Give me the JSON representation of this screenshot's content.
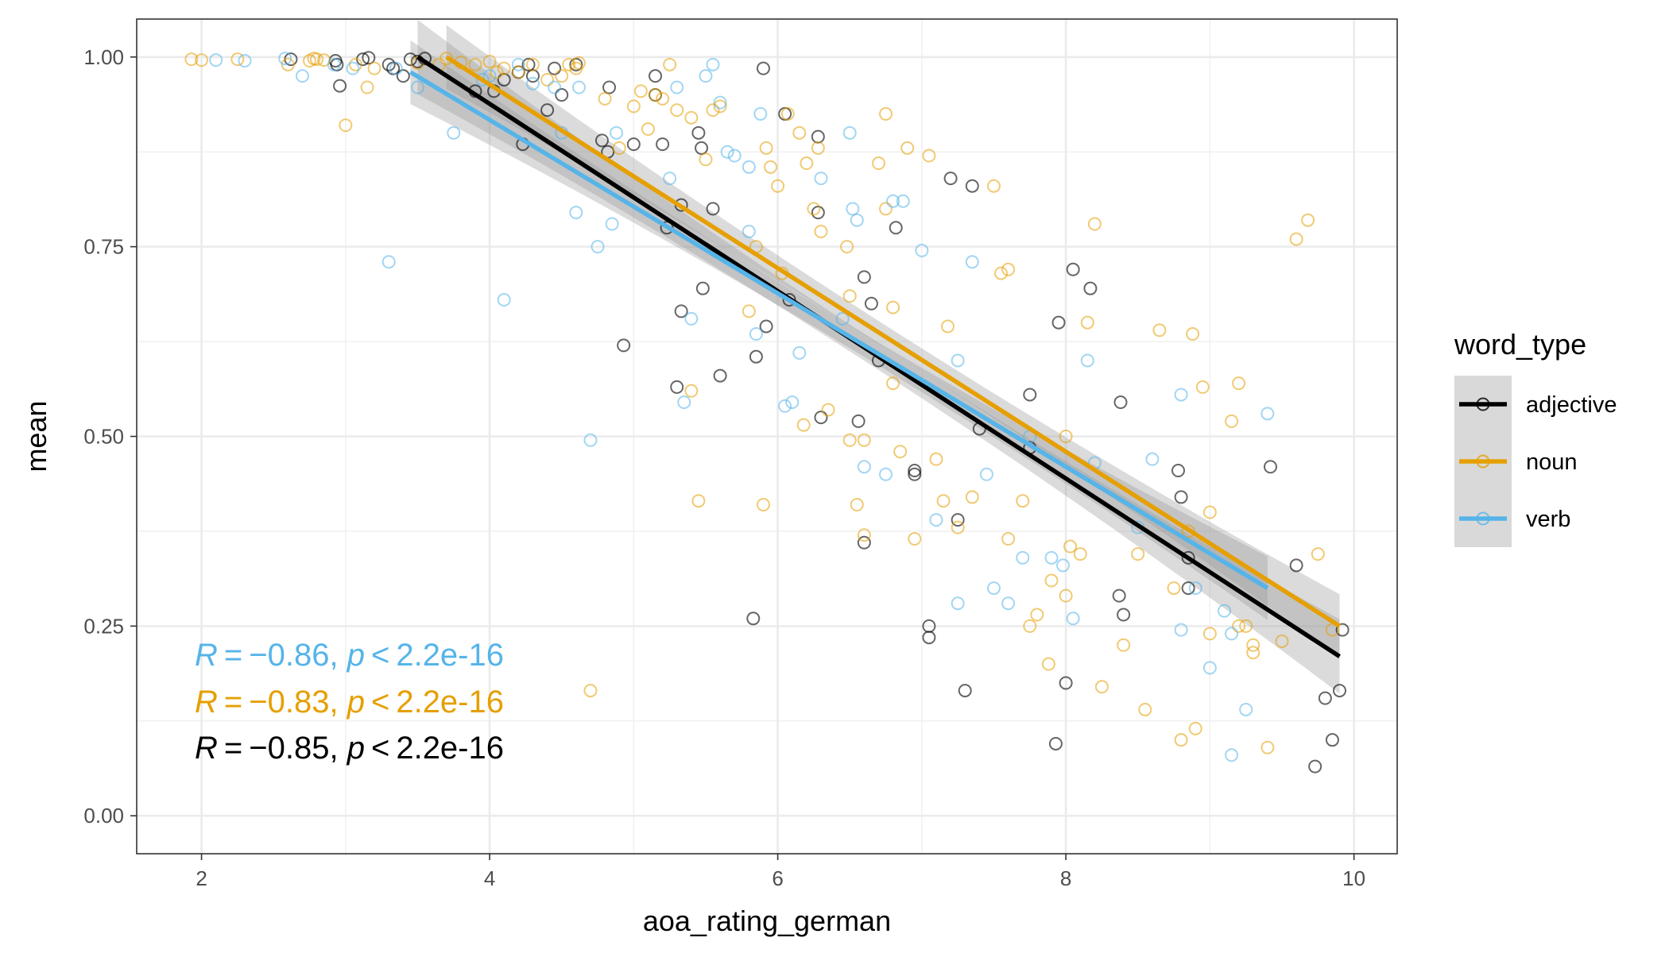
{
  "chart_data": {
    "type": "scatter",
    "xlabel": "aoa_rating_german",
    "ylabel": "mean",
    "xlim": [
      1.55,
      10.3
    ],
    "ylim": [
      -0.05,
      1.05
    ],
    "x_ticks": [
      2,
      4,
      6,
      8,
      10
    ],
    "y_ticks": [
      0.0,
      0.25,
      0.5,
      0.75,
      1.0
    ],
    "x_tick_labels": [
      "2",
      "4",
      "6",
      "8",
      "10"
    ],
    "y_tick_labels": [
      "0.00",
      "0.25",
      "0.50",
      "0.75",
      "1.00"
    ],
    "grid": true,
    "legend": {
      "title": "word_type",
      "position": "right"
    },
    "series": [
      {
        "name": "adjective",
        "color": "#000000",
        "regression": {
          "x": [
            3.5,
            9.9
          ],
          "y": [
            1.0,
            0.21
          ],
          "ci_width": 0.035
        },
        "annotation": {
          "R": "R = −0.85,",
          "p": "p < 2.2e-16"
        },
        "points": [
          [
            2.62,
            0.997
          ],
          [
            2.93,
            0.995
          ],
          [
            2.94,
            0.99
          ],
          [
            2.96,
            0.962
          ],
          [
            3.12,
            0.997
          ],
          [
            3.16,
            0.999
          ],
          [
            3.3,
            0.99
          ],
          [
            3.33,
            0.985
          ],
          [
            3.4,
            0.975
          ],
          [
            3.45,
            0.997
          ],
          [
            3.5,
            0.994
          ],
          [
            3.55,
            0.998
          ],
          [
            3.9,
            0.955
          ],
          [
            4.03,
            0.955
          ],
          [
            4.1,
            0.97
          ],
          [
            4.2,
            0.98
          ],
          [
            4.23,
            0.885
          ],
          [
            4.27,
            0.99
          ],
          [
            4.3,
            0.975
          ],
          [
            4.4,
            0.93
          ],
          [
            4.45,
            0.985
          ],
          [
            4.5,
            0.95
          ],
          [
            4.6,
            0.99
          ],
          [
            4.83,
            0.96
          ],
          [
            4.78,
            0.89
          ],
          [
            4.82,
            0.875
          ],
          [
            4.93,
            0.62
          ],
          [
            5.0,
            0.885
          ],
          [
            5.15,
            0.975
          ],
          [
            5.15,
            0.95
          ],
          [
            5.2,
            0.885
          ],
          [
            5.23,
            0.775
          ],
          [
            5.3,
            0.565
          ],
          [
            5.33,
            0.665
          ],
          [
            5.33,
            0.805
          ],
          [
            5.45,
            0.9
          ],
          [
            5.47,
            0.88
          ],
          [
            5.48,
            0.695
          ],
          [
            5.55,
            0.8
          ],
          [
            5.6,
            0.58
          ],
          [
            5.83,
            0.26
          ],
          [
            5.85,
            0.605
          ],
          [
            5.9,
            0.985
          ],
          [
            5.92,
            0.645
          ],
          [
            6.05,
            0.925
          ],
          [
            6.08,
            0.68
          ],
          [
            6.28,
            0.795
          ],
          [
            6.3,
            0.525
          ],
          [
            6.28,
            0.895
          ],
          [
            6.56,
            0.52
          ],
          [
            6.6,
            0.36
          ],
          [
            6.6,
            0.71
          ],
          [
            6.65,
            0.675
          ],
          [
            6.7,
            0.6
          ],
          [
            6.82,
            0.775
          ],
          [
            6.95,
            0.45
          ],
          [
            6.95,
            0.455
          ],
          [
            7.05,
            0.25
          ],
          [
            7.05,
            0.235
          ],
          [
            7.2,
            0.84
          ],
          [
            7.25,
            0.39
          ],
          [
            7.3,
            0.165
          ],
          [
            7.35,
            0.83
          ],
          [
            7.4,
            0.51
          ],
          [
            7.75,
            0.555
          ],
          [
            7.75,
            0.485
          ],
          [
            7.93,
            0.095
          ],
          [
            7.95,
            0.65
          ],
          [
            8.0,
            0.175
          ],
          [
            8.05,
            0.72
          ],
          [
            8.17,
            0.695
          ],
          [
            8.37,
            0.29
          ],
          [
            8.38,
            0.545
          ],
          [
            8.4,
            0.265
          ],
          [
            8.78,
            0.455
          ],
          [
            8.8,
            0.42
          ],
          [
            8.85,
            0.3
          ],
          [
            8.85,
            0.34
          ],
          [
            9.42,
            0.46
          ],
          [
            9.6,
            0.33
          ],
          [
            9.73,
            0.065
          ],
          [
            9.8,
            0.155
          ],
          [
            9.85,
            0.1
          ],
          [
            9.9,
            0.165
          ],
          [
            9.92,
            0.245
          ]
        ]
      },
      {
        "name": "noun",
        "color": "#E69F00",
        "regression": {
          "x": [
            3.7,
            9.9
          ],
          "y": [
            1.0,
            0.25
          ],
          "ci_width": 0.03
        },
        "annotation": {
          "R": "R = −0.83,",
          "p": "p < 2.2e-16"
        },
        "points": [
          [
            1.93,
            0.997
          ],
          [
            2.0,
            0.996
          ],
          [
            2.25,
            0.997
          ],
          [
            2.6,
            0.99
          ],
          [
            2.75,
            0.995
          ],
          [
            2.78,
            0.998
          ],
          [
            2.8,
            0.997
          ],
          [
            2.85,
            0.996
          ],
          [
            3.0,
            0.91
          ],
          [
            3.07,
            0.99
          ],
          [
            3.15,
            0.96
          ],
          [
            3.2,
            0.985
          ],
          [
            3.5,
            0.992
          ],
          [
            3.65,
            0.99
          ],
          [
            3.7,
            0.998
          ],
          [
            3.8,
            0.993
          ],
          [
            3.9,
            0.99
          ],
          [
            4.0,
            0.994
          ],
          [
            4.05,
            0.98
          ],
          [
            4.1,
            0.985
          ],
          [
            4.2,
            0.98
          ],
          [
            4.3,
            0.99
          ],
          [
            4.4,
            0.97
          ],
          [
            4.5,
            0.975
          ],
          [
            4.55,
            0.99
          ],
          [
            4.62,
            0.992
          ],
          [
            4.6,
            0.985
          ],
          [
            4.7,
            0.165
          ],
          [
            4.8,
            0.945
          ],
          [
            4.9,
            0.88
          ],
          [
            5.0,
            0.935
          ],
          [
            5.05,
            0.955
          ],
          [
            5.1,
            0.905
          ],
          [
            5.15,
            0.95
          ],
          [
            5.2,
            0.945
          ],
          [
            5.25,
            0.99
          ],
          [
            5.3,
            0.93
          ],
          [
            5.4,
            0.92
          ],
          [
            5.4,
            0.56
          ],
          [
            5.45,
            0.415
          ],
          [
            5.5,
            0.865
          ],
          [
            5.55,
            0.93
          ],
          [
            5.6,
            0.935
          ],
          [
            5.8,
            0.665
          ],
          [
            5.85,
            0.75
          ],
          [
            5.9,
            0.41
          ],
          [
            5.95,
            0.855
          ],
          [
            5.92,
            0.88
          ],
          [
            6.0,
            0.83
          ],
          [
            6.03,
            0.715
          ],
          [
            6.07,
            0.925
          ],
          [
            6.15,
            0.9
          ],
          [
            6.2,
            0.86
          ],
          [
            6.28,
            0.88
          ],
          [
            6.3,
            0.77
          ],
          [
            6.18,
            0.515
          ],
          [
            6.25,
            0.8
          ],
          [
            6.35,
            0.535
          ],
          [
            6.48,
            0.75
          ],
          [
            6.5,
            0.685
          ],
          [
            6.5,
            0.495
          ],
          [
            6.55,
            0.41
          ],
          [
            6.6,
            0.37
          ],
          [
            6.6,
            0.495
          ],
          [
            6.7,
            0.86
          ],
          [
            6.75,
            0.8
          ],
          [
            6.75,
            0.925
          ],
          [
            6.8,
            0.67
          ],
          [
            6.8,
            0.57
          ],
          [
            6.85,
            0.48
          ],
          [
            6.9,
            0.88
          ],
          [
            6.95,
            0.365
          ],
          [
            7.05,
            0.87
          ],
          [
            7.1,
            0.47
          ],
          [
            7.15,
            0.415
          ],
          [
            7.18,
            0.645
          ],
          [
            7.25,
            0.38
          ],
          [
            7.35,
            0.42
          ],
          [
            7.5,
            0.83
          ],
          [
            7.55,
            0.715
          ],
          [
            7.6,
            0.365
          ],
          [
            7.6,
            0.72
          ],
          [
            7.7,
            0.415
          ],
          [
            7.75,
            0.25
          ],
          [
            7.8,
            0.265
          ],
          [
            7.88,
            0.2
          ],
          [
            7.9,
            0.31
          ],
          [
            8.0,
            0.5
          ],
          [
            8.0,
            0.29
          ],
          [
            8.03,
            0.355
          ],
          [
            8.1,
            0.345
          ],
          [
            8.15,
            0.65
          ],
          [
            8.2,
            0.78
          ],
          [
            8.25,
            0.17
          ],
          [
            8.4,
            0.225
          ],
          [
            8.5,
            0.345
          ],
          [
            8.55,
            0.14
          ],
          [
            8.65,
            0.64
          ],
          [
            8.75,
            0.3
          ],
          [
            8.8,
            0.1
          ],
          [
            8.85,
            0.375
          ],
          [
            8.88,
            0.635
          ],
          [
            8.95,
            0.565
          ],
          [
            8.9,
            0.115
          ],
          [
            9.0,
            0.4
          ],
          [
            9.0,
            0.24
          ],
          [
            9.15,
            0.52
          ],
          [
            9.2,
            0.57
          ],
          [
            9.2,
            0.25
          ],
          [
            9.25,
            0.25
          ],
          [
            9.3,
            0.225
          ],
          [
            9.3,
            0.215
          ],
          [
            9.4,
            0.09
          ],
          [
            9.5,
            0.23
          ],
          [
            9.6,
            0.76
          ],
          [
            9.68,
            0.785
          ],
          [
            9.75,
            0.345
          ],
          [
            9.85,
            0.245
          ]
        ]
      },
      {
        "name": "verb",
        "color": "#56B4E9",
        "regression": {
          "x": [
            3.45,
            9.4
          ],
          "y": [
            0.98,
            0.3
          ],
          "ci_width": 0.03
        },
        "annotation": {
          "R": "R = −0.86,",
          "p": "p < 2.2e-16"
        },
        "points": [
          [
            2.1,
            0.996
          ],
          [
            2.3,
            0.995
          ],
          [
            2.58,
            0.998
          ],
          [
            2.7,
            0.975
          ],
          [
            2.92,
            0.99
          ],
          [
            3.05,
            0.985
          ],
          [
            3.3,
            0.73
          ],
          [
            3.35,
            0.985
          ],
          [
            3.5,
            0.96
          ],
          [
            3.75,
            0.9
          ],
          [
            3.95,
            0.97
          ],
          [
            4.0,
            0.975
          ],
          [
            4.1,
            0.68
          ],
          [
            4.2,
            0.99
          ],
          [
            4.3,
            0.965
          ],
          [
            4.45,
            0.96
          ],
          [
            4.5,
            0.9
          ],
          [
            4.6,
            0.795
          ],
          [
            4.62,
            0.96
          ],
          [
            4.7,
            0.495
          ],
          [
            4.75,
            0.75
          ],
          [
            4.85,
            0.78
          ],
          [
            4.88,
            0.9
          ],
          [
            5.25,
            0.84
          ],
          [
            5.3,
            0.96
          ],
          [
            5.35,
            0.545
          ],
          [
            5.4,
            0.655
          ],
          [
            5.5,
            0.975
          ],
          [
            5.55,
            0.99
          ],
          [
            5.6,
            0.94
          ],
          [
            5.65,
            0.875
          ],
          [
            5.7,
            0.87
          ],
          [
            5.8,
            0.77
          ],
          [
            5.8,
            0.855
          ],
          [
            5.85,
            0.635
          ],
          [
            5.88,
            0.925
          ],
          [
            6.05,
            0.54
          ],
          [
            6.1,
            0.545
          ],
          [
            6.15,
            0.61
          ],
          [
            6.3,
            0.84
          ],
          [
            6.45,
            0.655
          ],
          [
            6.5,
            0.9
          ],
          [
            6.52,
            0.8
          ],
          [
            6.55,
            0.785
          ],
          [
            6.6,
            0.46
          ],
          [
            6.75,
            0.45
          ],
          [
            6.8,
            0.81
          ],
          [
            6.87,
            0.81
          ],
          [
            7.0,
            0.745
          ],
          [
            7.1,
            0.39
          ],
          [
            7.25,
            0.28
          ],
          [
            7.25,
            0.6
          ],
          [
            7.35,
            0.73
          ],
          [
            7.45,
            0.45
          ],
          [
            7.5,
            0.3
          ],
          [
            7.6,
            0.28
          ],
          [
            7.7,
            0.34
          ],
          [
            7.75,
            0.5
          ],
          [
            7.9,
            0.34
          ],
          [
            7.98,
            0.33
          ],
          [
            8.05,
            0.26
          ],
          [
            8.15,
            0.6
          ],
          [
            8.2,
            0.465
          ],
          [
            8.5,
            0.38
          ],
          [
            8.6,
            0.47
          ],
          [
            8.8,
            0.555
          ],
          [
            8.8,
            0.245
          ],
          [
            8.9,
            0.3
          ],
          [
            9.0,
            0.195
          ],
          [
            9.1,
            0.27
          ],
          [
            9.15,
            0.24
          ],
          [
            9.15,
            0.08
          ],
          [
            9.25,
            0.14
          ],
          [
            9.4,
            0.53
          ]
        ]
      }
    ]
  }
}
